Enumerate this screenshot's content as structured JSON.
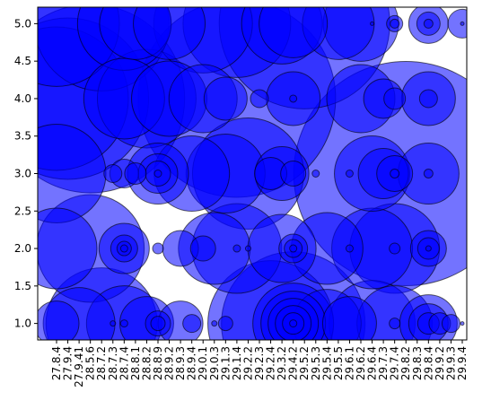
{
  "chart_data": {
    "type": "scatter",
    "title": "",
    "xlabel": "",
    "ylabel": "",
    "marker_color": "#0000ff",
    "marker_alpha": 0.55,
    "edge_color": "#000000",
    "ylim": [
      0.78,
      5.22
    ],
    "yticks": [
      "1.0",
      "1.5",
      "2.0",
      "2.5",
      "3.0",
      "3.5",
      "4.0",
      "4.5",
      "5.0"
    ],
    "categories": [
      "27.8.4",
      "27.9.4",
      "27.9.41",
      "28.5.6",
      "28.7.2",
      "28.7.3",
      "28.7.4",
      "28.8.1",
      "28.8.2",
      "28.8.9",
      "28.9.2",
      "28.9.3",
      "28.9.4",
      "29.0.1",
      "29.0.3",
      "29.1.3",
      "29.1.4",
      "29.2.2",
      "29.2.3",
      "29.2.4",
      "29.3.2",
      "29.4.2",
      "29.5.2",
      "29.5.3",
      "29.5.4",
      "29.5.5",
      "29.6.1",
      "29.6.2",
      "29.6.4",
      "29.7.3",
      "29.7.4",
      "29.8.2",
      "29.8.3",
      "29.8.4",
      "29.9.2",
      "29.9.3",
      "29.9.4"
    ],
    "points": [
      {
        "x": "27.8.4",
        "y": 1,
        "r": 25
      },
      {
        "x": "27.8.4",
        "y": 2,
        "r": 45
      },
      {
        "x": "27.8.4",
        "y": 3,
        "r": 55
      },
      {
        "x": "27.8.4",
        "y": 4,
        "r": 80
      },
      {
        "x": "27.8.4",
        "y": 5,
        "r": 70
      },
      {
        "x": "27.9.4",
        "y": 4,
        "r": 90
      },
      {
        "x": "27.9.41",
        "y": 1,
        "r": 40
      },
      {
        "x": "28.5.6",
        "y": 2,
        "r": 60
      },
      {
        "x": "28.5.6",
        "y": 4,
        "r": 105
      },
      {
        "x": "28.7.2",
        "y": 1,
        "r": 62
      },
      {
        "x": "28.7.2",
        "y": 5,
        "r": 75
      },
      {
        "x": "28.7.3",
        "y": 3,
        "r": 10
      },
      {
        "x": "28.7.3",
        "y": 1,
        "r": 3
      },
      {
        "x": "28.7.4",
        "y": 1,
        "r": 42
      },
      {
        "x": "28.7.4",
        "y": 2,
        "r": 28
      },
      {
        "x": "28.7.4",
        "y": 2,
        "r": 15
      },
      {
        "x": "28.7.4",
        "y": 2,
        "r": 8
      },
      {
        "x": "28.7.4",
        "y": 2,
        "r": 4
      },
      {
        "x": "28.7.4",
        "y": 3,
        "r": 16
      },
      {
        "x": "28.7.4",
        "y": 4,
        "r": 45
      },
      {
        "x": "28.7.4",
        "y": 5,
        "r": 52
      },
      {
        "x": "28.7.4",
        "y": 1,
        "r": 4
      },
      {
        "x": "28.8.1",
        "y": 3,
        "r": 12
      },
      {
        "x": "28.8.1",
        "y": 5,
        "r": 40
      },
      {
        "x": "28.8.2",
        "y": 1,
        "r": 30
      },
      {
        "x": "28.8.2",
        "y": 4,
        "r": 55
      },
      {
        "x": "28.8.9",
        "y": 1,
        "r": 14
      },
      {
        "x": "28.8.9",
        "y": 1,
        "r": 8
      },
      {
        "x": "28.8.9",
        "y": 3,
        "r": 34
      },
      {
        "x": "28.8.9",
        "y": 3,
        "r": 22
      },
      {
        "x": "28.8.9",
        "y": 3,
        "r": 14
      },
      {
        "x": "28.8.9",
        "y": 3,
        "r": 4
      },
      {
        "x": "28.8.9",
        "y": 2,
        "r": 6
      },
      {
        "x": "28.9.2",
        "y": 5,
        "r": 40
      },
      {
        "x": "28.9.2",
        "y": 4,
        "r": 42
      },
      {
        "x": "28.9.3",
        "y": 1,
        "r": 25
      },
      {
        "x": "28.9.3",
        "y": 2,
        "r": 20
      },
      {
        "x": "28.9.4",
        "y": 3,
        "r": 42
      },
      {
        "x": "28.9.4",
        "y": 1,
        "r": 10
      },
      {
        "x": "29.0.1",
        "y": 2,
        "r": 14
      },
      {
        "x": "29.0.1",
        "y": 4,
        "r": 38
      },
      {
        "x": "29.0.1",
        "y": 5,
        "r": 55
      },
      {
        "x": "29.0.3",
        "y": 2,
        "r": 40
      },
      {
        "x": "29.0.3",
        "y": 1,
        "r": 3
      },
      {
        "x": "29.1.3",
        "y": 3,
        "r": 44
      },
      {
        "x": "29.1.3",
        "y": 4,
        "r": 24
      },
      {
        "x": "29.1.3",
        "y": 1,
        "r": 8
      },
      {
        "x": "29.1.4",
        "y": 2,
        "r": 50
      },
      {
        "x": "29.1.4",
        "y": 2,
        "r": 4
      },
      {
        "x": "29.1.4",
        "y": 4,
        "r": 110
      },
      {
        "x": "29.1.4",
        "y": 5,
        "r": 60
      },
      {
        "x": "29.2.2",
        "y": 2,
        "r": 3
      },
      {
        "x": "29.2.2",
        "y": 3,
        "r": 62
      },
      {
        "x": "29.2.3",
        "y": 4,
        "r": 10
      },
      {
        "x": "29.2.4",
        "y": 1,
        "r": 70
      },
      {
        "x": "29.2.4",
        "y": 3,
        "r": 18
      },
      {
        "x": "29.3.2",
        "y": 2,
        "r": 38
      },
      {
        "x": "29.3.2",
        "y": 3,
        "r": 30
      },
      {
        "x": "29.3.2",
        "y": 5,
        "r": 45
      },
      {
        "x": "29.4.2",
        "y": 1,
        "r": 80
      },
      {
        "x": "29.4.2",
        "y": 1,
        "r": 45
      },
      {
        "x": "29.4.2",
        "y": 1,
        "r": 36
      },
      {
        "x": "29.4.2",
        "y": 1,
        "r": 28
      },
      {
        "x": "29.4.2",
        "y": 1,
        "r": 20
      },
      {
        "x": "29.4.2",
        "y": 1,
        "r": 12
      },
      {
        "x": "29.4.2",
        "y": 1,
        "r": 4
      },
      {
        "x": "29.4.2",
        "y": 2,
        "r": 16
      },
      {
        "x": "29.4.2",
        "y": 2,
        "r": 10
      },
      {
        "x": "29.4.2",
        "y": 2,
        "r": 4
      },
      {
        "x": "29.4.2",
        "y": 4,
        "r": 30
      },
      {
        "x": "29.4.2",
        "y": 4,
        "r": 4
      },
      {
        "x": "29.4.2",
        "y": 3,
        "r": 14
      },
      {
        "x": "29.4.2",
        "y": 5,
        "r": 38
      },
      {
        "x": "29.5.2",
        "y": 5,
        "r": 95
      },
      {
        "x": "29.5.3",
        "y": 3,
        "r": 4
      },
      {
        "x": "29.5.4",
        "y": 1,
        "r": 38
      },
      {
        "x": "29.5.4",
        "y": 2,
        "r": 40
      },
      {
        "x": "29.5.5",
        "y": 5,
        "r": 40
      },
      {
        "x": "29.6.1",
        "y": 1,
        "r": 30
      },
      {
        "x": "29.6.1",
        "y": 2,
        "r": 4
      },
      {
        "x": "29.6.1",
        "y": 3,
        "r": 4
      },
      {
        "x": "29.6.2",
        "y": 4,
        "r": 38
      },
      {
        "x": "29.6.2",
        "y": 5,
        "r": 42
      },
      {
        "x": "29.6.4",
        "y": 1,
        "r": 48
      },
      {
        "x": "29.6.4",
        "y": 2,
        "r": 45
      },
      {
        "x": "29.6.4",
        "y": 3,
        "r": 42
      },
      {
        "x": "29.6.4",
        "y": 5,
        "r": 2
      },
      {
        "x": "29.7.3",
        "y": 4,
        "r": 22
      },
      {
        "x": "29.7.3",
        "y": 3,
        "r": 28
      },
      {
        "x": "29.7.4",
        "y": 1,
        "r": 42
      },
      {
        "x": "29.7.4",
        "y": 1,
        "r": 6
      },
      {
        "x": "29.7.4",
        "y": 2,
        "r": 50
      },
      {
        "x": "29.7.4",
        "y": 2,
        "r": 6
      },
      {
        "x": "29.7.4",
        "y": 3,
        "r": 20
      },
      {
        "x": "29.7.4",
        "y": 3,
        "r": 5
      },
      {
        "x": "29.7.4",
        "y": 4,
        "r": 12
      },
      {
        "x": "29.7.4",
        "y": 5,
        "r": 9
      },
      {
        "x": "29.7.4",
        "y": 5,
        "r": 5
      },
      {
        "x": "29.8.2",
        "y": 3,
        "r": 125
      },
      {
        "x": "29.8.4",
        "y": 1,
        "r": 32
      },
      {
        "x": "29.8.4",
        "y": 1,
        "r": 22
      },
      {
        "x": "29.8.4",
        "y": 1,
        "r": 12
      },
      {
        "x": "29.8.4",
        "y": 2,
        "r": 20
      },
      {
        "x": "29.8.4",
        "y": 2,
        "r": 12
      },
      {
        "x": "29.8.4",
        "y": 2,
        "r": 3
      },
      {
        "x": "29.8.4",
        "y": 3,
        "r": 34
      },
      {
        "x": "29.8.4",
        "y": 3,
        "r": 5
      },
      {
        "x": "29.8.4",
        "y": 4,
        "r": 30
      },
      {
        "x": "29.8.4",
        "y": 4,
        "r": 10
      },
      {
        "x": "29.8.4",
        "y": 5,
        "r": 22
      },
      {
        "x": "29.8.4",
        "y": 5,
        "r": 13
      },
      {
        "x": "29.8.4",
        "y": 5,
        "r": 5
      },
      {
        "x": "29.9.2",
        "y": 1,
        "r": 12
      },
      {
        "x": "29.9.3",
        "y": 1,
        "r": 10
      },
      {
        "x": "29.9.4",
        "y": 5,
        "r": 16
      },
      {
        "x": "29.9.4",
        "y": 1,
        "r": 2
      },
      {
        "x": "29.9.4",
        "y": 5,
        "r": 2
      }
    ]
  }
}
